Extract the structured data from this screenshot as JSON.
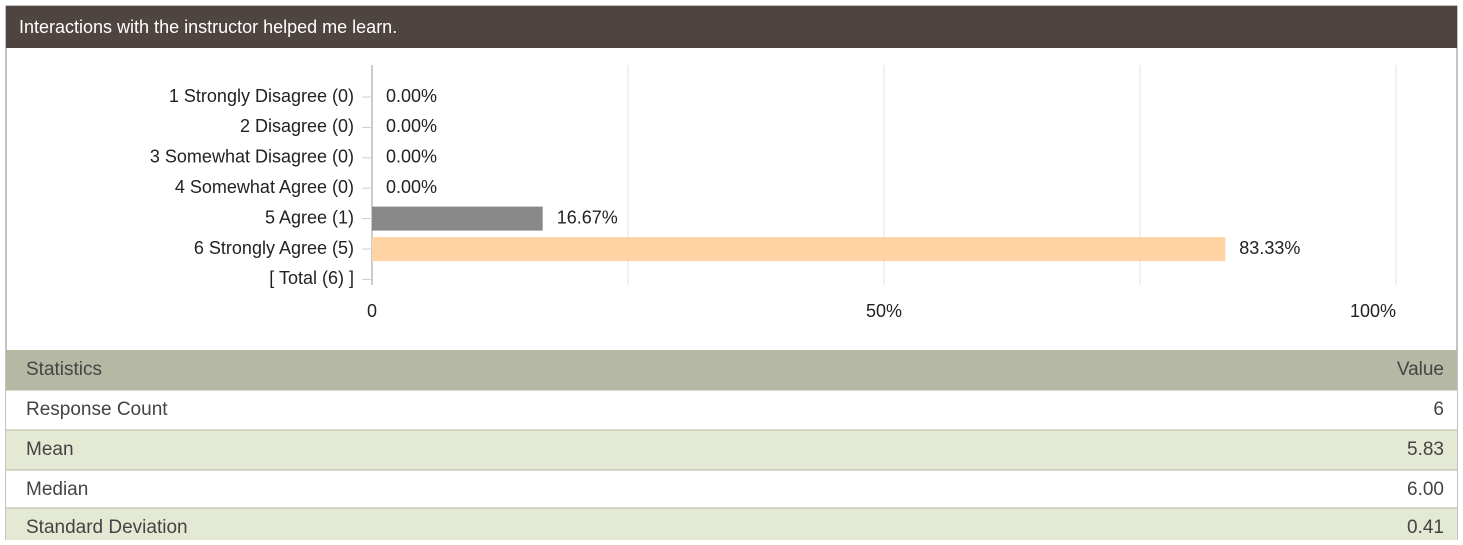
{
  "header": {
    "title": "Interactions with the instructor helped me learn."
  },
  "chart_data": {
    "type": "barh",
    "categories": [
      "1 Strongly Disagree (0)",
      "2 Disagree (0)",
      "3 Somewhat Disagree (0)",
      "4 Somewhat Agree (0)",
      "5 Agree (1)",
      "6 Strongly Agree (5)",
      "[ Total (6) ]"
    ],
    "values": [
      0,
      0,
      0,
      0,
      16.67,
      83.33,
      null
    ],
    "value_labels": [
      "0.00%",
      "0.00%",
      "0.00%",
      "0.00%",
      "16.67%",
      "83.33%",
      null
    ],
    "colors": [
      "#888888",
      "#888888",
      "#888888",
      "#888888",
      "#888888",
      "#ffd3a3",
      null
    ],
    "xlim": [
      0,
      100
    ],
    "xticks": [
      0,
      {
        "value": 50,
        "label": "50%"
      },
      {
        "value": 100,
        "label": "100%"
      }
    ],
    "minor_xticks": [
      25,
      75
    ],
    "grid": true
  },
  "statistics": {
    "header": [
      "Statistics",
      "Value"
    ],
    "rows": [
      [
        "Response Count",
        "6"
      ],
      [
        "Mean",
        "5.83"
      ],
      [
        "Median",
        "6.00"
      ],
      [
        "Standard Deviation",
        "0.41"
      ]
    ]
  }
}
